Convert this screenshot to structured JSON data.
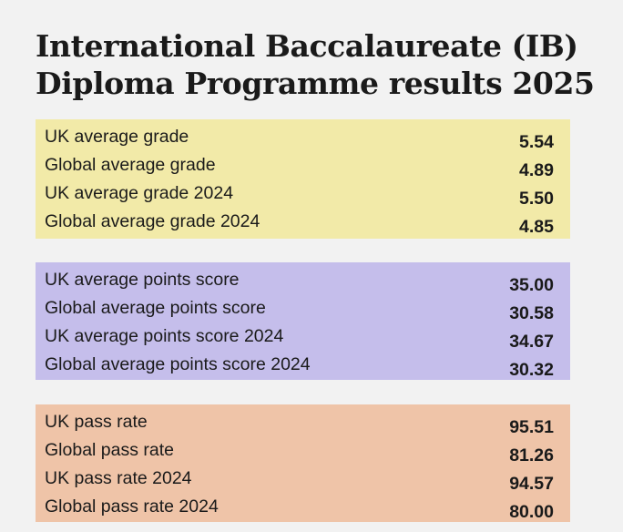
{
  "title": {
    "line1": "International Baccalaureate (IB)",
    "line2": "Diploma Programme results 2025"
  },
  "colors": {
    "grade_panel": "#f2eaa8",
    "points_panel": "#c5beeb",
    "pass_panel": "#efc4a8",
    "background": "#f2f2f2"
  },
  "panels": [
    {
      "id": "grade",
      "rows": [
        {
          "label": "UK average grade",
          "value": "5.54"
        },
        {
          "label": "Global average grade",
          "value": "4.89"
        },
        {
          "label": "UK average grade 2024",
          "value": "5.50"
        },
        {
          "label": "Global average grade 2024",
          "value": "4.85"
        }
      ]
    },
    {
      "id": "points",
      "rows": [
        {
          "label": "UK average points score",
          "value": "35.00"
        },
        {
          "label": "Global average points score",
          "value": "30.58"
        },
        {
          "label": "UK average points score 2024",
          "value": "34.67"
        },
        {
          "label": "Global average points score 2024",
          "value": "30.32"
        }
      ]
    },
    {
      "id": "pass",
      "rows": [
        {
          "label": "UK pass rate",
          "value": "95.51"
        },
        {
          "label": "Global pass rate",
          "value": "81.26"
        },
        {
          "label": "UK pass rate 2024",
          "value": "94.57"
        },
        {
          "label": "Global pass rate 2024",
          "value": "80.00"
        }
      ]
    }
  ]
}
